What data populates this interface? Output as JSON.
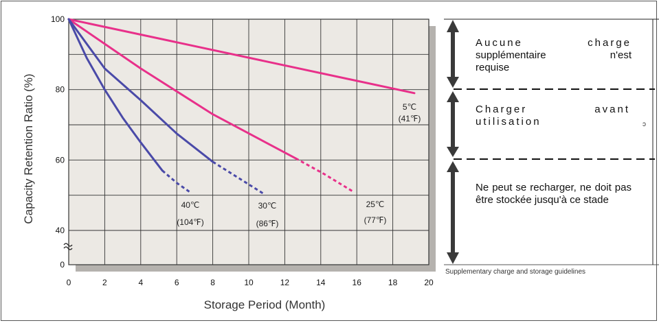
{
  "chart_data": {
    "type": "line",
    "xlabel": "Storage Period (Month)",
    "ylabel": "Capacity Retention Ratio (%)",
    "xlim": [
      0,
      20
    ],
    "x_ticks": [
      0,
      2,
      4,
      6,
      8,
      10,
      12,
      14,
      16,
      18,
      20
    ],
    "y_ticks": [
      0,
      40,
      60,
      80,
      100
    ],
    "y_axis_break": "between 0 and 40",
    "grid": true,
    "series": [
      {
        "name": "5℃ (41℉)",
        "label_lines": [
          "5℃",
          "(41℉)"
        ],
        "color": "#e8308a",
        "x": [
          0,
          19.2
        ],
        "y": [
          100,
          79
        ],
        "dashed_from_x": null
      },
      {
        "name": "25℃ (77℉)",
        "label_lines": [
          "25℃",
          "(77℉)"
        ],
        "color": "#e8308a",
        "x": [
          0,
          4,
          8,
          12.6,
          14.2,
          15.8
        ],
        "y": [
          100,
          86,
          73,
          60.5,
          56,
          51
        ],
        "dashed_from_x": 12.6
      },
      {
        "name": "30℃ (86℉)",
        "label_lines": [
          "30℃",
          "(86℉)"
        ],
        "color": "#4a4aa8",
        "x": [
          0,
          2,
          4,
          6,
          8,
          9.4,
          10.8
        ],
        "y": [
          100,
          86,
          77,
          67.5,
          59.5,
          55,
          50.5
        ],
        "dashed_from_x": 8
      },
      {
        "name": "40℃ (104℉)",
        "label_lines": [
          "40℃",
          "(104℉)"
        ],
        "color": "#4a4aa8",
        "x": [
          0,
          1,
          2,
          3,
          4,
          5.2,
          6,
          6.7
        ],
        "y": [
          100,
          89,
          80,
          72,
          65,
          57,
          53.5,
          51
        ],
        "dashed_from_x": 5.2
      }
    ]
  },
  "guidelines": {
    "zone1": {
      "line1": "Aucune charge",
      "line2": "supplémentaire n'est",
      "line3": "requise"
    },
    "zone2": {
      "line1": "Charger avant",
      "line2": "utilisation"
    },
    "zone3": {
      "text": "Ne peut se recharger, ne doit pas être stockée jusqu'à ce stade"
    },
    "stray_mark": "ɔ",
    "caption": "Supplementary charge and storage guidelines"
  },
  "colors": {
    "plot_background": "#ece9e4",
    "plot_shadow": "#b5b2ae",
    "grid": "#333333",
    "arrow": "#3a3a3a"
  }
}
